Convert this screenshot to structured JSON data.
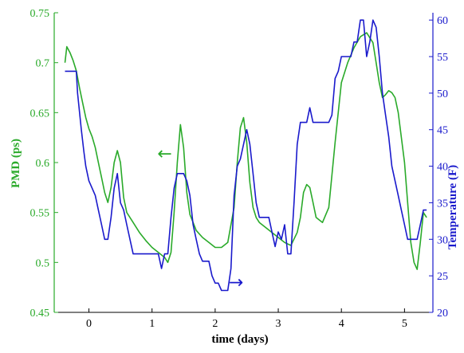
{
  "colors": {
    "pmd": "#2aaa2a",
    "temperature": "#1a1acc",
    "axis": "#000000"
  },
  "chart_data": {
    "type": "line",
    "xlabel": "time (days)",
    "ylabel_left": "PMD (ps)",
    "ylabel_right": "Temperature (F)",
    "xlim": [
      -0.55,
      5.45
    ],
    "ylim_left": [
      0.45,
      0.75
    ],
    "ylim_right": [
      20,
      61
    ],
    "x_ticks": [
      "0",
      "1",
      "2",
      "3",
      "4",
      "5"
    ],
    "y_ticks_left": [
      "0.45",
      "0.5",
      "0.55",
      "0.6",
      "0.65",
      "0.7",
      "0.75"
    ],
    "y_ticks_right": [
      "20",
      "25",
      "30",
      "35",
      "40",
      "45",
      "50",
      "55",
      "60"
    ],
    "grid": false,
    "annotations": [
      {
        "text": "←",
        "series": "PMD",
        "x": 1.2,
        "y_left": 0.608
      },
      {
        "text": "→",
        "series": "Temperature",
        "x": 2.33,
        "y_right": 24
      }
    ],
    "series": [
      {
        "name": "PMD",
        "axis": "left",
        "color": "#2aaa2a",
        "x": [
          -0.38,
          -0.35,
          -0.3,
          -0.25,
          -0.2,
          -0.15,
          -0.1,
          -0.05,
          0,
          0.05,
          0.1,
          0.15,
          0.2,
          0.25,
          0.3,
          0.35,
          0.4,
          0.45,
          0.5,
          0.55,
          0.6,
          0.7,
          0.8,
          0.9,
          1,
          1.1,
          1.2,
          1.25,
          1.3,
          1.35,
          1.4,
          1.45,
          1.5,
          1.55,
          1.6,
          1.65,
          1.7,
          1.8,
          1.9,
          2,
          2.1,
          2.2,
          2.3,
          2.35,
          2.4,
          2.45,
          2.5,
          2.55,
          2.6,
          2.65,
          2.7,
          2.8,
          2.9,
          3,
          3.1,
          3.2,
          3.3,
          3.35,
          3.4,
          3.45,
          3.5,
          3.55,
          3.6,
          3.7,
          3.8,
          3.9,
          4,
          4.1,
          4.2,
          4.3,
          4.4,
          4.5,
          4.55,
          4.6,
          4.65,
          4.7,
          4.75,
          4.8,
          4.85,
          4.9,
          5,
          5.05,
          5.1,
          5.15,
          5.2,
          5.25,
          5.3,
          5.35
        ],
        "y": [
          0.7,
          0.716,
          0.71,
          0.702,
          0.692,
          0.675,
          0.66,
          0.645,
          0.634,
          0.626,
          0.615,
          0.6,
          0.585,
          0.57,
          0.56,
          0.575,
          0.6,
          0.612,
          0.6,
          0.565,
          0.55,
          0.54,
          0.53,
          0.522,
          0.515,
          0.51,
          0.505,
          0.5,
          0.51,
          0.55,
          0.6,
          0.638,
          0.615,
          0.57,
          0.548,
          0.54,
          0.532,
          0.525,
          0.52,
          0.515,
          0.515,
          0.52,
          0.555,
          0.6,
          0.635,
          0.645,
          0.62,
          0.58,
          0.555,
          0.545,
          0.54,
          0.535,
          0.53,
          0.525,
          0.52,
          0.517,
          0.53,
          0.545,
          0.57,
          0.578,
          0.575,
          0.56,
          0.545,
          0.54,
          0.555,
          0.62,
          0.68,
          0.7,
          0.715,
          0.726,
          0.73,
          0.72,
          0.7,
          0.68,
          0.665,
          0.668,
          0.672,
          0.67,
          0.665,
          0.65,
          0.6,
          0.56,
          0.52,
          0.5,
          0.493,
          0.52,
          0.55,
          0.545
        ]
      },
      {
        "name": "Temperature",
        "axis": "right",
        "color": "#1a1acc",
        "x": [
          -0.38,
          -0.2,
          -0.18,
          -0.12,
          -0.08,
          -0.05,
          0,
          0.05,
          0.1,
          0.15,
          0.2,
          0.25,
          0.3,
          0.35,
          0.4,
          0.45,
          0.5,
          0.55,
          0.6,
          0.65,
          0.7,
          0.75,
          0.8,
          0.85,
          0.9,
          0.95,
          1,
          1.05,
          1.1,
          1.15,
          1.2,
          1.25,
          1.3,
          1.35,
          1.4,
          1.45,
          1.5,
          1.55,
          1.6,
          1.65,
          1.7,
          1.75,
          1.8,
          1.85,
          1.9,
          1.95,
          2,
          2.05,
          2.1,
          2.15,
          2.2,
          2.25,
          2.3,
          2.35,
          2.4,
          2.45,
          2.5,
          2.55,
          2.6,
          2.65,
          2.7,
          2.75,
          2.8,
          2.85,
          2.9,
          2.95,
          3,
          3.05,
          3.1,
          3.15,
          3.2,
          3.25,
          3.3,
          3.35,
          3.4,
          3.45,
          3.5,
          3.55,
          3.6,
          3.65,
          3.7,
          3.75,
          3.8,
          3.85,
          3.9,
          3.95,
          4,
          4.05,
          4.1,
          4.15,
          4.2,
          4.25,
          4.3,
          4.35,
          4.4,
          4.45,
          4.5,
          4.55,
          4.6,
          4.65,
          4.7,
          4.75,
          4.8,
          4.85,
          4.9,
          4.95,
          5,
          5.05,
          5.1,
          5.15,
          5.2,
          5.25,
          5.3,
          5.35
        ],
        "y": [
          53,
          53,
          50,
          45,
          42,
          40,
          38,
          37,
          36,
          34,
          32,
          30,
          30,
          33,
          37,
          39,
          35,
          34,
          32,
          30,
          28,
          28,
          28,
          28,
          28,
          28,
          28,
          28,
          28,
          26,
          28,
          28,
          33,
          37,
          39,
          39,
          39,
          38,
          36,
          32,
          30,
          28,
          27,
          27,
          27,
          25,
          24,
          24,
          23,
          23,
          23,
          26,
          36,
          40,
          41,
          43,
          45,
          43,
          39,
          35,
          33,
          33,
          33,
          33,
          31,
          29,
          31,
          30,
          32,
          28,
          28,
          35,
          43,
          46,
          46,
          46,
          48,
          46,
          46,
          46,
          46,
          46,
          46,
          47,
          52,
          53,
          55,
          55,
          55,
          55,
          57,
          57,
          60,
          60,
          55,
          57,
          60,
          59,
          55,
          50,
          47,
          44,
          40,
          38,
          36,
          34,
          32,
          30,
          30,
          30,
          30,
          32,
          34,
          34
        ]
      }
    ]
  }
}
